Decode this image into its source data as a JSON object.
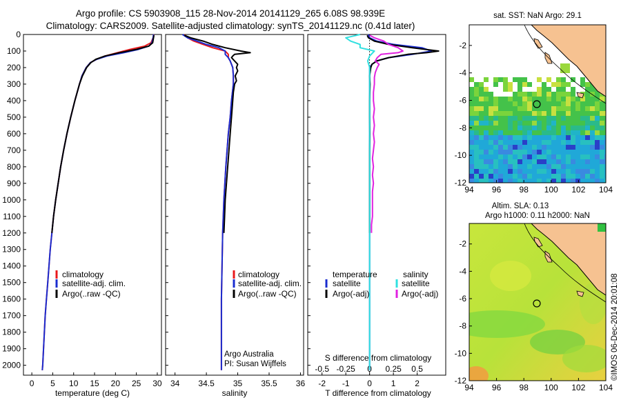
{
  "header": {
    "line1": "Argo profile: CS 5903908_115 28-Nov-2014 20141129_265 6.08S 98.939E",
    "line2": "Climatology: CARS2009. Satellite-adjusted climatology: synTS_20141129.nc (0.41d later)"
  },
  "colors": {
    "climatology": "#e8181c",
    "satellite": "#1a2ccf",
    "argo": "#000000",
    "sat_salinity": "#30e0e0",
    "argo_salinity": "#e020e0",
    "land": "#f6c291"
  },
  "depth_ticks": [
    "0",
    "100",
    "200",
    "300",
    "400",
    "500",
    "600",
    "700",
    "800",
    "900",
    "1000",
    "1100",
    "1200",
    "1300",
    "1400",
    "1500",
    "1600",
    "1700",
    "1800",
    "1900",
    "2000"
  ],
  "chart_data": [
    {
      "type": "line",
      "name": "temperature profile",
      "xlabel": "temperature (deg C)",
      "xlim": [
        -2,
        31
      ],
      "ylim": [
        2060,
        0
      ],
      "x_ticks": [
        "0",
        "5",
        "10",
        "15",
        "20",
        "25",
        "30"
      ],
      "legend": [
        "climatology",
        "satellite-adj. clim.",
        "Argo(..raw -QC)"
      ],
      "series": [
        {
          "name": "climatology",
          "depth": [
            0,
            20,
            50,
            70,
            90,
            110,
            130,
            150,
            170,
            200,
            250,
            300,
            400,
            500,
            600,
            700,
            800,
            900,
            1000,
            1100,
            1200,
            1300,
            1400,
            1500,
            1600,
            1700,
            1800,
            1900,
            2000,
            2030
          ],
          "values": [
            29.2,
            29.0,
            28.5,
            27.0,
            23.5,
            20.5,
            17.5,
            15.5,
            14.0,
            13.0,
            12.0,
            11.4,
            10.3,
            9.3,
            8.4,
            7.6,
            6.9,
            6.3,
            5.7,
            5.2,
            4.8,
            4.4,
            4.1,
            3.8,
            3.5,
            3.2,
            3.0,
            2.8,
            2.6,
            2.5
          ]
        },
        {
          "name": "satellite-adj. clim.",
          "depth": [
            0,
            20,
            50,
            70,
            90,
            110,
            130,
            150,
            170,
            200,
            250,
            300,
            400,
            500,
            600,
            700,
            800,
            900,
            1000,
            1100,
            1200,
            1300,
            1400,
            1500,
            1600,
            1700,
            1800,
            1900,
            2000,
            2030
          ],
          "values": [
            29.1,
            29.0,
            28.7,
            28.0,
            25.5,
            22.0,
            18.0,
            15.5,
            14.0,
            13.0,
            12.0,
            11.4,
            10.3,
            9.3,
            8.4,
            7.6,
            6.9,
            6.3,
            5.7,
            5.2,
            4.8,
            4.4,
            4.1,
            3.8,
            3.5,
            3.2,
            3.0,
            2.8,
            2.6,
            2.5
          ]
        },
        {
          "name": "Argo(..raw -QC)",
          "depth": [
            5,
            20,
            50,
            70,
            90,
            110,
            130,
            150,
            170,
            200,
            250,
            300,
            400,
            500,
            600,
            700,
            800,
            900,
            1000,
            1100,
            1200
          ],
          "values": [
            29.2,
            29.1,
            28.9,
            28.0,
            25.0,
            21.0,
            17.5,
            15.3,
            14.1,
            13.1,
            12.1,
            11.4,
            10.3,
            9.3,
            8.4,
            7.6,
            6.9,
            6.3,
            5.7,
            5.2,
            4.8
          ]
        }
      ]
    },
    {
      "type": "line",
      "name": "salinity profile",
      "xlabel": "salinity",
      "xlim": [
        33.85,
        36.05
      ],
      "ylim": [
        2060,
        0
      ],
      "x_ticks": [
        "34",
        "34.5",
        "35",
        "35.5",
        "36"
      ],
      "legend": [
        "climatology",
        "satellite-adj. clim.",
        "Argo(..raw -QC)"
      ],
      "notes": [
        "Argo Australia",
        "PI: Susan Wijffels"
      ],
      "series": [
        {
          "name": "climatology",
          "depth": [
            0,
            20,
            40,
            60,
            80,
            100,
            120,
            140,
            160,
            180,
            200,
            250,
            300,
            400,
            500,
            600,
            800,
            1000,
            1200,
            1400,
            1600,
            1800,
            2000,
            2030
          ],
          "values": [
            34.15,
            34.2,
            34.3,
            34.45,
            34.6,
            34.8,
            34.85,
            34.85,
            34.88,
            34.9,
            34.92,
            34.93,
            34.93,
            34.9,
            34.88,
            34.85,
            34.81,
            34.78,
            34.76,
            34.75,
            34.74,
            34.74,
            34.74,
            34.74
          ]
        },
        {
          "name": "satellite-adj. clim.",
          "depth": [
            0,
            20,
            40,
            60,
            80,
            100,
            120,
            140,
            160,
            180,
            200,
            250,
            300,
            400,
            500,
            600,
            800,
            1000,
            1200,
            1400,
            1600,
            1800,
            2000,
            2030
          ],
          "values": [
            34.12,
            34.2,
            34.35,
            34.5,
            34.7,
            34.8,
            34.8,
            34.85,
            34.88,
            34.9,
            34.92,
            34.93,
            34.93,
            34.9,
            34.88,
            34.85,
            34.81,
            34.78,
            34.76,
            34.75,
            34.74,
            34.74,
            34.74,
            34.74
          ]
        },
        {
          "name": "Argo(..raw -QC)",
          "depth": [
            5,
            20,
            40,
            60,
            80,
            100,
            110,
            120,
            130,
            140,
            160,
            180,
            200,
            220,
            250,
            280,
            300,
            350,
            400,
            500,
            600,
            700,
            800,
            900,
            1000,
            1100,
            1200
          ],
          "values": [
            34.15,
            34.25,
            34.45,
            34.6,
            34.8,
            35.05,
            35.2,
            34.95,
            34.92,
            34.9,
            34.95,
            35.0,
            34.98,
            35.0,
            34.96,
            34.98,
            34.95,
            34.93,
            34.92,
            34.9,
            34.88,
            34.86,
            34.84,
            34.82,
            34.8,
            34.79,
            34.78
          ]
        }
      ]
    },
    {
      "type": "line",
      "name": "difference from climatology",
      "xlabel": "T difference from climatology",
      "xlabel_top": "S difference from climatology",
      "xlim": [
        -2.6,
        3.2
      ],
      "ylim": [
        2060,
        0
      ],
      "x_ticks": [
        "-2",
        "-1",
        "0",
        "1",
        "2"
      ],
      "s_ticks": [
        "-0.5",
        "-0.25",
        "0",
        "0.25",
        "0.5"
      ],
      "legend_titles": [
        "temperature",
        "salinity"
      ],
      "legend": [
        "satellite",
        "Argo(-adj)",
        "satellite",
        "Argo(-adj)"
      ],
      "series": [
        {
          "name": "temperature satellite",
          "depth": [
            0,
            20,
            40,
            60,
            80,
            100,
            120,
            140,
            160,
            180,
            200,
            300,
            500,
            1000,
            1500,
            2030
          ],
          "values": [
            -0.05,
            0.0,
            0.3,
            1.0,
            2.2,
            2.6,
            1.8,
            0.8,
            0.3,
            0.1,
            0.0,
            0.0,
            0.0,
            0.0,
            0.0,
            0.0
          ]
        },
        {
          "name": "temperature Argo(-adj)",
          "depth": [
            5,
            20,
            40,
            60,
            80,
            100,
            110,
            120,
            140,
            160,
            180,
            200,
            250,
            300,
            400,
            500,
            600,
            700,
            800,
            900,
            1000,
            1100,
            1200
          ],
          "values": [
            -0.1,
            -0.05,
            0.2,
            0.8,
            1.8,
            2.9,
            2.4,
            1.6,
            0.8,
            0.3,
            0.1,
            0.05,
            0.0,
            0.02,
            0.0,
            0.0,
            0.01,
            0.0,
            0.0,
            0.0,
            0.0,
            0.0,
            0.0
          ]
        },
        {
          "name": "salinity satellite",
          "depth": [
            0,
            20,
            40,
            60,
            80,
            100,
            130,
            160,
            200,
            300,
            500,
            1000,
            1500,
            2030
          ],
          "values": [
            -0.1,
            -0.25,
            -0.2,
            -0.1,
            -0.1,
            0.05,
            0.0,
            -0.02,
            0.0,
            0.0,
            0.0,
            0.0,
            0.0,
            0.0
          ]
        },
        {
          "name": "salinity Argo(-adj)",
          "depth": [
            5,
            20,
            40,
            60,
            80,
            100,
            110,
            120,
            140,
            160,
            180,
            200,
            230,
            260,
            300,
            350,
            400,
            450,
            500,
            550,
            600,
            650,
            700,
            750,
            800,
            850,
            900,
            950,
            1000,
            1050,
            1100,
            1150,
            1200
          ],
          "values": [
            0.0,
            0.05,
            0.15,
            0.2,
            0.3,
            0.35,
            0.3,
            0.12,
            0.08,
            0.06,
            0.1,
            0.08,
            0.06,
            0.05,
            0.05,
            0.04,
            0.04,
            0.05,
            0.04,
            0.05,
            0.04,
            0.05,
            0.04,
            0.03,
            0.04,
            0.03,
            0.04,
            0.03,
            0.03,
            0.03,
            0.03,
            0.02,
            0.02
          ]
        }
      ]
    }
  ],
  "maps": {
    "sst": {
      "title": "sat. SST: NaN Argo: 29.1",
      "x_ticks": [
        "94",
        "96",
        "98",
        "100",
        "102",
        "104"
      ],
      "y_ticks": [
        "-2",
        "-4",
        "-6",
        "-8",
        "-10",
        "-12"
      ]
    },
    "sla": {
      "title_line1": "Altim. SLA: 0.13",
      "title_line2": "Argo h1000: 0.11 h2000: NaN",
      "x_ticks": [
        "94",
        "96",
        "98",
        "100",
        "102",
        "104"
      ],
      "y_ticks": [
        "-2",
        "-4",
        "-6",
        "-8",
        "-10",
        "-12"
      ]
    },
    "float_position": {
      "lon": 98.939,
      "lat": -6.08
    }
  },
  "footer": {
    "stamp": "©IMOS 06-Dec-2014 20:01:08"
  }
}
